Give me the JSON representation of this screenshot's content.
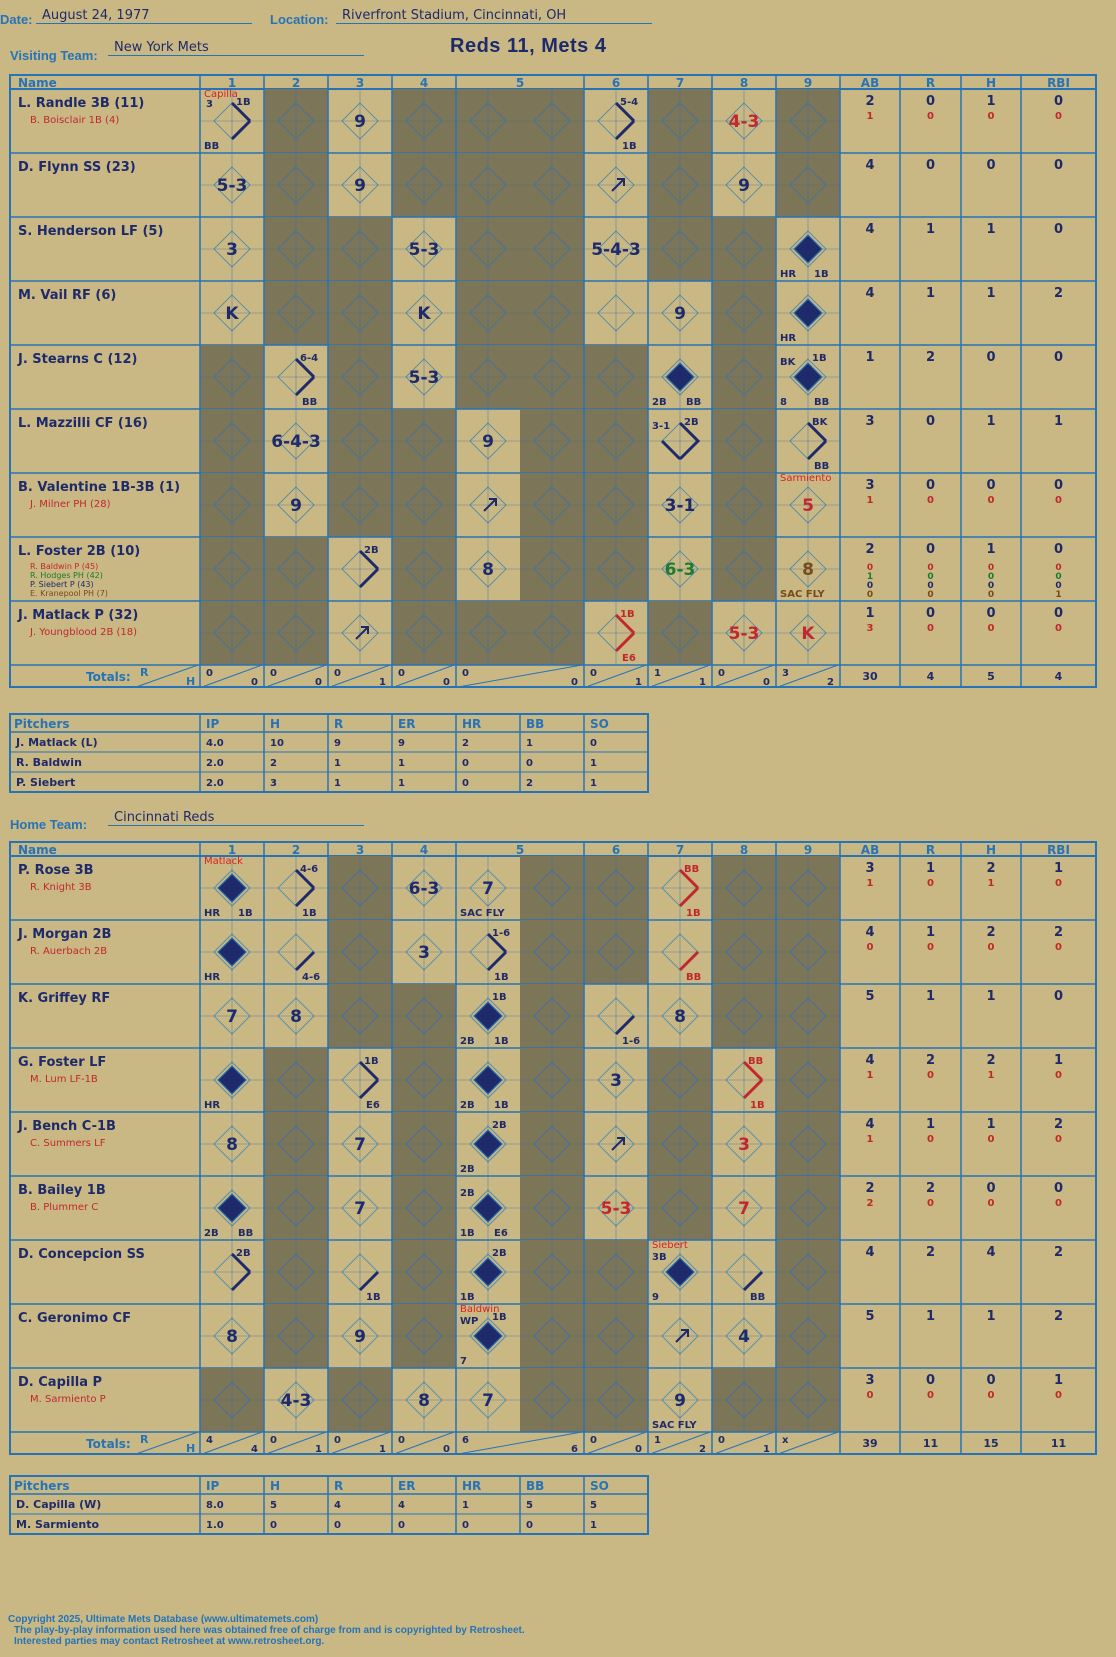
{
  "header": {
    "date_label": "Date:",
    "date": "August 24, 1977",
    "location_label": "Location:",
    "location": "Riverfront Stadium, Cincinnati, OH",
    "visiting_label": "Visiting Team:",
    "visiting_team": "New York Mets",
    "home_label": "Home Team:",
    "home_team": "Cincinnati Reds",
    "result": "Reds 11, Mets 4"
  },
  "columns": {
    "name": "Name",
    "innings": [
      "1",
      "2",
      "3",
      "4",
      "5",
      "6",
      "7",
      "8",
      "9"
    ],
    "stats": [
      "AB",
      "R",
      "H",
      "RBI"
    ],
    "totals_label": "Totals:",
    "totals_r": "R",
    "totals_h": "H"
  },
  "visitor": {
    "rows": [
      {
        "name": "L. Randle 3B (11)",
        "subs": [
          {
            "name": "B. Boisclair 1B (4)",
            "color": "#c0282d"
          }
        ],
        "stats": [
          [
            "2",
            "0",
            "1",
            "0"
          ],
          [
            "1",
            "0",
            "0",
            "0"
          ]
        ]
      },
      {
        "name": "D. Flynn SS (23)",
        "subs": [],
        "stats": [
          [
            "4",
            "0",
            "0",
            "0"
          ]
        ]
      },
      {
        "name": "S. Henderson LF (5)",
        "subs": [],
        "stats": [
          [
            "4",
            "1",
            "1",
            "0"
          ]
        ]
      },
      {
        "name": "M. Vail RF (6)",
        "subs": [],
        "stats": [
          [
            "4",
            "1",
            "1",
            "2"
          ]
        ]
      },
      {
        "name": "J. Stearns C (12)",
        "subs": [],
        "stats": [
          [
            "1",
            "2",
            "0",
            "0"
          ]
        ]
      },
      {
        "name": "L. Mazzilli CF (16)",
        "subs": [],
        "stats": [
          [
            "3",
            "0",
            "1",
            "1"
          ]
        ]
      },
      {
        "name": "B. Valentine 1B-3B (1)",
        "subs": [
          {
            "name": "J. Milner PH (28)",
            "color": "#c0282d"
          }
        ],
        "stats": [
          [
            "3",
            "0",
            "0",
            "0"
          ],
          [
            "1",
            "0",
            "0",
            "0"
          ]
        ]
      },
      {
        "name": "L. Foster 2B (10)",
        "subs": [
          {
            "name": "R. Baldwin P (45)",
            "color": "#c0282d"
          },
          {
            "name": "R. Hodges PH (42)",
            "color": "#1e7a32"
          },
          {
            "name": "P. Siebert P (43)",
            "color": "#1f2a6b"
          },
          {
            "name": "E. Kranepool PH (7)",
            "color": "#7a4a1a"
          }
        ],
        "stats": [
          [
            "2",
            "0",
            "1",
            "0"
          ],
          [
            "0",
            "0",
            "0",
            "0"
          ],
          [
            "1",
            "0",
            "0",
            "0"
          ],
          [
            "0",
            "0",
            "0",
            "0"
          ],
          [
            "0",
            "0",
            "0",
            "1"
          ]
        ]
      },
      {
        "name": "J. Matlack P (32)",
        "subs": [
          {
            "name": "J. Youngblood 2B (18)",
            "color": "#c0282d"
          }
        ],
        "stats": [
          [
            "1",
            "0",
            "0",
            "0"
          ],
          [
            "3",
            "0",
            "0",
            "0"
          ]
        ]
      }
    ],
    "cells": [
      [
        {
          "t": "diag",
          "s": "3",
          "n": "1B",
          "bl": "BB",
          "pitcher": "Capilla"
        },
        {
          "t": "dark"
        },
        {
          "t": "text",
          "v": "9"
        },
        {
          "t": "dark"
        },
        {
          "t": "dark"
        },
        {
          "t": "diag",
          "n": "5-4",
          "br": "1B"
        },
        {
          "t": "dark"
        },
        {
          "t": "text",
          "v": "4-3",
          "c": "#c0282d"
        },
        {
          "t": "dark"
        }
      ],
      [
        {
          "t": "text",
          "v": "5-3"
        },
        {
          "t": "dark"
        },
        {
          "t": "text",
          "v": "9"
        },
        {
          "t": "dark"
        },
        {
          "t": "dark"
        },
        {
          "t": "arrow"
        },
        {
          "t": "dark"
        },
        {
          "t": "text",
          "v": "9"
        },
        {
          "t": "dark"
        }
      ],
      [
        {
          "t": "text",
          "v": "3"
        },
        {
          "t": "dark"
        },
        {
          "t": "dark"
        },
        {
          "t": "text",
          "v": "5-3"
        },
        {
          "t": "dark"
        },
        {
          "t": "text",
          "v": "5-4-3"
        },
        {
          "t": "dark"
        },
        {
          "t": "dark"
        },
        {
          "t": "full",
          "bl": "HR",
          "br": "1B"
        }
      ],
      [
        {
          "t": "text",
          "v": "K"
        },
        {
          "t": "dark"
        },
        {
          "t": "dark"
        },
        {
          "t": "text",
          "v": "K"
        },
        {
          "t": "dark"
        },
        {
          "t": "empty"
        },
        {
          "t": "text",
          "v": "9"
        },
        {
          "t": "dark"
        },
        {
          "t": "full",
          "bl": "HR"
        }
      ],
      [
        {
          "t": "dark"
        },
        {
          "t": "diag",
          "n": "6-4",
          "br": "BB"
        },
        {
          "t": "dark"
        },
        {
          "t": "text",
          "v": "5-3"
        },
        {
          "t": "dark"
        },
        {
          "t": "dark"
        },
        {
          "t": "full",
          "bl": "2B",
          "br": "BB"
        },
        {
          "t": "dark"
        },
        {
          "t": "full",
          "tl": "BK",
          "n": "1B",
          "bl": "8",
          "br": "BB"
        }
      ],
      [
        {
          "t": "dark"
        },
        {
          "t": "text",
          "v": "6-4-3"
        },
        {
          "t": "dark"
        },
        {
          "t": "dark"
        },
        {
          "t": "text",
          "v": "9"
        },
        {
          "t": "dark"
        },
        {
          "t": "half",
          "tl": "3-1",
          "n": "2B"
        },
        {
          "t": "dark"
        },
        {
          "t": "diag",
          "n": "BK",
          "br": "BB"
        }
      ],
      [
        {
          "t": "dark"
        },
        {
          "t": "text",
          "v": "9"
        },
        {
          "t": "dark"
        },
        {
          "t": "dark"
        },
        {
          "t": "arrow"
        },
        {
          "t": "dark"
        },
        {
          "t": "text",
          "v": "3-1"
        },
        {
          "t": "dark"
        },
        {
          "t": "text",
          "v": "5",
          "c": "#c0282d",
          "pitcher": "Sarmiento"
        }
      ],
      [
        {
          "t": "dark"
        },
        {
          "t": "dark"
        },
        {
          "t": "diag",
          "n": "2B"
        },
        {
          "t": "dark"
        },
        {
          "t": "text",
          "v": "8"
        },
        {
          "t": "dark"
        },
        {
          "t": "text",
          "v": "6-3",
          "c": "#1e7a32"
        },
        {
          "t": "dark"
        },
        {
          "t": "text",
          "v": "8",
          "c": "#7a4a1a",
          "bl": "SAC FLY"
        }
      ],
      [
        {
          "t": "dark"
        },
        {
          "t": "dark"
        },
        {
          "t": "arrow"
        },
        {
          "t": "dark"
        },
        {
          "t": "dark"
        },
        {
          "t": "diagred",
          "n": "1B",
          "br": "E6"
        },
        {
          "t": "dark"
        },
        {
          "t": "text",
          "v": "5-3",
          "c": "#c0282d"
        },
        {
          "t": "text",
          "v": "K",
          "c": "#c0282d"
        }
      ]
    ],
    "totals": [
      [
        "0",
        "0"
      ],
      [
        "0",
        "0"
      ],
      [
        "0",
        "1"
      ],
      [
        "0",
        "0"
      ],
      [
        "0",
        "0"
      ],
      [
        "0",
        "1"
      ],
      [
        "1",
        "1"
      ],
      [
        "0",
        "0"
      ],
      [
        "3",
        "2"
      ]
    ],
    "total_stats": [
      "30",
      "4",
      "5",
      "4"
    ],
    "pitchers_label": "Pitchers",
    "pitcher_cols": [
      "IP",
      "H",
      "R",
      "ER",
      "HR",
      "BB",
      "SO"
    ],
    "pitchers": [
      {
        "name": "J. Matlack (L)",
        "vals": [
          "4.0",
          "10",
          "9",
          "9",
          "2",
          "1",
          "0"
        ]
      },
      {
        "name": "R. Baldwin",
        "vals": [
          "2.0",
          "2",
          "1",
          "1",
          "0",
          "0",
          "1"
        ]
      },
      {
        "name": "P. Siebert",
        "vals": [
          "2.0",
          "3",
          "1",
          "1",
          "0",
          "2",
          "1"
        ]
      }
    ]
  },
  "home": {
    "rows": [
      {
        "name": "P. Rose 3B",
        "subs": [
          {
            "name": "R. Knight 3B",
            "color": "#c0282d"
          }
        ],
        "stats": [
          [
            "3",
            "1",
            "2",
            "1"
          ],
          [
            "1",
            "0",
            "1",
            "0"
          ]
        ]
      },
      {
        "name": "J. Morgan 2B",
        "subs": [
          {
            "name": "R. Auerbach 2B",
            "color": "#c0282d"
          }
        ],
        "stats": [
          [
            "4",
            "1",
            "2",
            "2"
          ],
          [
            "0",
            "0",
            "0",
            "0"
          ]
        ]
      },
      {
        "name": "K. Griffey RF",
        "subs": [],
        "stats": [
          [
            "5",
            "1",
            "1",
            "0"
          ]
        ]
      },
      {
        "name": "G. Foster LF",
        "subs": [
          {
            "name": "M. Lum LF-1B",
            "color": "#c0282d"
          }
        ],
        "stats": [
          [
            "4",
            "2",
            "2",
            "1"
          ],
          [
            "1",
            "0",
            "1",
            "0"
          ]
        ]
      },
      {
        "name": "J. Bench C-1B",
        "subs": [
          {
            "name": "C. Summers LF",
            "color": "#c0282d"
          }
        ],
        "stats": [
          [
            "4",
            "1",
            "1",
            "2"
          ],
          [
            "1",
            "0",
            "0",
            "0"
          ]
        ]
      },
      {
        "name": "B. Bailey 1B",
        "subs": [
          {
            "name": "B. Plummer C",
            "color": "#c0282d"
          }
        ],
        "stats": [
          [
            "2",
            "2",
            "0",
            "0"
          ],
          [
            "2",
            "0",
            "0",
            "0"
          ]
        ]
      },
      {
        "name": "D. Concepcion SS",
        "subs": [],
        "stats": [
          [
            "4",
            "2",
            "4",
            "2"
          ]
        ]
      },
      {
        "name": "C. Geronimo CF",
        "subs": [],
        "stats": [
          [
            "5",
            "1",
            "1",
            "2"
          ]
        ]
      },
      {
        "name": "D. Capilla P",
        "subs": [
          {
            "name": "M. Sarmiento P",
            "color": "#c0282d"
          }
        ],
        "stats": [
          [
            "3",
            "0",
            "0",
            "1"
          ],
          [
            "0",
            "0",
            "0",
            "0"
          ]
        ]
      }
    ],
    "cells": [
      [
        {
          "t": "full",
          "bl": "HR",
          "br": "1B",
          "pitcher": "Matlack"
        },
        {
          "t": "diag",
          "n": "4-6",
          "br": "1B"
        },
        {
          "t": "dark"
        },
        {
          "t": "text",
          "v": "6-3"
        },
        {
          "t": "text",
          "v": "7",
          "bl": "SAC FLY"
        },
        {
          "t": "dark"
        },
        {
          "t": "diagred",
          "n": "BB",
          "br": "1B"
        },
        {
          "t": "dark"
        },
        {
          "t": "dark"
        }
      ],
      [
        {
          "t": "full",
          "bl": "HR"
        },
        {
          "t": "diag",
          "br": "4-6"
        },
        {
          "t": "dark"
        },
        {
          "t": "text",
          "v": "3"
        },
        {
          "t": "diag",
          "n": "1-6",
          "br": "1B"
        },
        {
          "t": "dark"
        },
        {
          "t": "diagred",
          "br": "BB"
        },
        {
          "t": "dark"
        },
        {
          "t": "dark"
        }
      ],
      [
        {
          "t": "text",
          "v": "7"
        },
        {
          "t": "text",
          "v": "8"
        },
        {
          "t": "dark"
        },
        {
          "t": "dark"
        },
        {
          "t": "full",
          "n": "1B",
          "bl": "2B",
          "br": "1B"
        },
        {
          "t": "diag",
          "br": "1-6"
        },
        {
          "t": "text",
          "v": "8"
        },
        {
          "t": "dark"
        },
        {
          "t": "dark"
        }
      ],
      [
        {
          "t": "full",
          "bl": "HR"
        },
        {
          "t": "dark"
        },
        {
          "t": "diag",
          "n": "1B",
          "br": "E6"
        },
        {
          "t": "dark"
        },
        {
          "t": "full",
          "bl": "2B",
          "br": "1B"
        },
        {
          "t": "text",
          "v": "3"
        },
        {
          "t": "dark"
        },
        {
          "t": "diagred",
          "n": "BB",
          "br": "1B"
        },
        {
          "t": "dark"
        }
      ],
      [
        {
          "t": "text",
          "v": "8"
        },
        {
          "t": "dark"
        },
        {
          "t": "text",
          "v": "7"
        },
        {
          "t": "dark"
        },
        {
          "t": "full",
          "n": "2B",
          "bl": "2B"
        },
        {
          "t": "arrow"
        },
        {
          "t": "dark"
        },
        {
          "t": "text",
          "v": "3",
          "c": "#c0282d"
        },
        {
          "t": "dark"
        }
      ],
      [
        {
          "t": "full",
          "bl": "2B",
          "br": "BB"
        },
        {
          "t": "dark"
        },
        {
          "t": "text",
          "v": "7"
        },
        {
          "t": "dark"
        },
        {
          "t": "full",
          "tl": "2B",
          "bl": "1B",
          "br": "E6"
        },
        {
          "t": "text",
          "v": "5-3",
          "c": "#c0282d"
        },
        {
          "t": "dark"
        },
        {
          "t": "text",
          "v": "7",
          "c": "#c0282d"
        },
        {
          "t": "dark"
        }
      ],
      [
        {
          "t": "diag",
          "n": "2B"
        },
        {
          "t": "dark"
        },
        {
          "t": "diag",
          "br": "1B"
        },
        {
          "t": "dark"
        },
        {
          "t": "full",
          "n": "2B",
          "bl": "1B"
        },
        {
          "t": "dark"
        },
        {
          "t": "full",
          "tl": "3B",
          "bl": "9",
          "pitcher": "Siebert"
        },
        {
          "t": "diag",
          "br": "BB"
        },
        {
          "t": "dark"
        }
      ],
      [
        {
          "t": "text",
          "v": "8"
        },
        {
          "t": "dark"
        },
        {
          "t": "text",
          "v": "9"
        },
        {
          "t": "dark"
        },
        {
          "t": "full",
          "tl": "WP",
          "n": "1B",
          "bl": "7",
          "pitcher": "Baldwin"
        },
        {
          "t": "dark"
        },
        {
          "t": "arrow"
        },
        {
          "t": "text",
          "v": "4"
        },
        {
          "t": "dark"
        }
      ],
      [
        {
          "t": "dark"
        },
        {
          "t": "text",
          "v": "4-3"
        },
        {
          "t": "dark"
        },
        {
          "t": "text",
          "v": "8"
        },
        {
          "t": "text",
          "v": "7"
        },
        {
          "t": "dark"
        },
        {
          "t": "text",
          "v": "9",
          "bl": "SAC FLY"
        },
        {
          "t": "dark"
        },
        {
          "t": "dark"
        }
      ]
    ],
    "totals": [
      [
        "4",
        "4"
      ],
      [
        "0",
        "1"
      ],
      [
        "0",
        "1"
      ],
      [
        "0",
        "0"
      ],
      [
        "6",
        "6"
      ],
      [
        "0",
        "0"
      ],
      [
        "1",
        "2"
      ],
      [
        "0",
        "1"
      ],
      [
        "x",
        ""
      ]
    ],
    "total_stats": [
      "39",
      "11",
      "15",
      "11"
    ],
    "pitchers_label": "Pitchers",
    "pitcher_cols": [
      "IP",
      "H",
      "R",
      "ER",
      "HR",
      "BB",
      "SO"
    ],
    "pitchers": [
      {
        "name": "D. Capilla (W)",
        "vals": [
          "8.0",
          "5",
          "4",
          "4",
          "1",
          "5",
          "5"
        ]
      },
      {
        "name": "M. Sarmiento",
        "vals": [
          "1.0",
          "0",
          "0",
          "0",
          "0",
          "0",
          "1"
        ]
      }
    ]
  },
  "colors": {
    "blue": "#2673b8",
    "ink": "#1f2a6b",
    "dark": "#7d7558",
    "bg": "#c9b883",
    "red": "#c0282d"
  },
  "footer": {
    "line1": "Copyright 2025, Ultimate Mets Database (www.ultimatemets.com)",
    "line2": "The play-by-play information used here was obtained free of charge from and is copyrighted by Retrosheet.",
    "line3": "Interested parties may contact Retrosheet at www.retrosheet.org."
  }
}
